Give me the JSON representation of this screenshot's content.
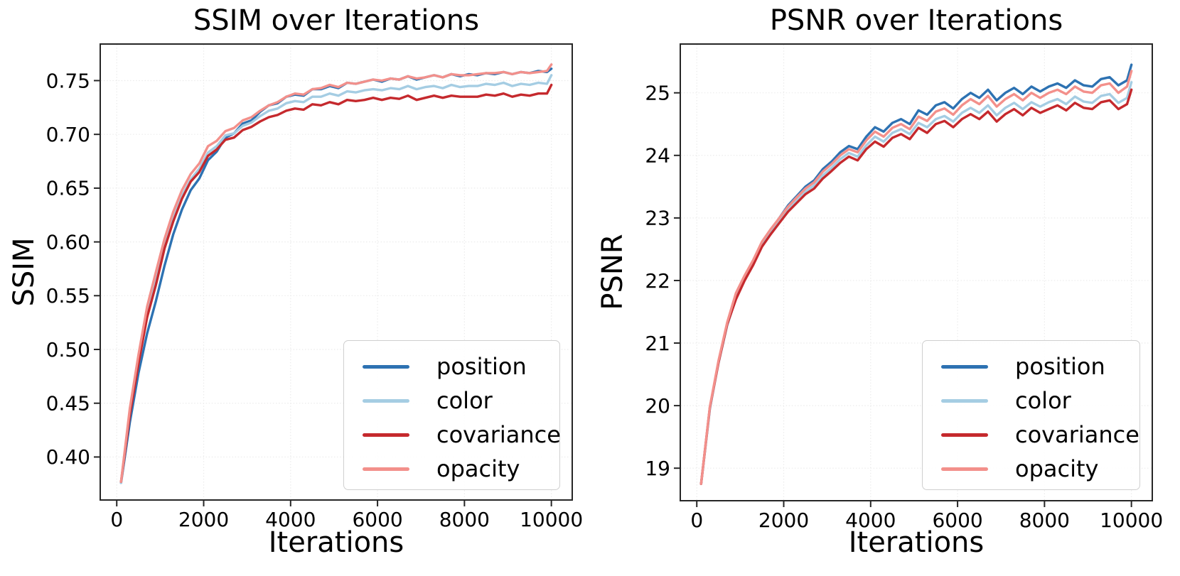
{
  "style": {
    "figure_background": "#ffffff",
    "text_color": "#000000",
    "grid_color": "#ebebeb",
    "spine_color": "#262626",
    "legend_border_color": "#cfcfcf"
  },
  "chart_data": [
    {
      "type": "line",
      "title": "SSIM over Iterations",
      "xlabel": "Iterations",
      "ylabel": "SSIM",
      "xlim": [
        -380,
        10480
      ],
      "ylim": [
        0.36,
        0.784
      ],
      "grid": true,
      "legend_position": "lower right",
      "xticks": {
        "values": [
          0,
          2000,
          4000,
          6000,
          8000,
          10000
        ],
        "labels": [
          "0",
          "2000",
          "4000",
          "6000",
          "8000",
          "10000"
        ]
      },
      "yticks": {
        "values": [
          0.4,
          0.45,
          0.5,
          0.55,
          0.6,
          0.65,
          0.7,
          0.75
        ],
        "labels": [
          "0.40",
          "0.45",
          "0.50",
          "0.55",
          "0.60",
          "0.65",
          "0.70",
          "0.75"
        ]
      },
      "x": [
        100,
        300,
        500,
        700,
        900,
        1100,
        1300,
        1500,
        1700,
        1900,
        2100,
        2300,
        2500,
        2700,
        2900,
        3100,
        3300,
        3500,
        3700,
        3900,
        4100,
        4300,
        4500,
        4700,
        4900,
        5100,
        5300,
        5500,
        5700,
        5900,
        6100,
        6300,
        6500,
        6700,
        6900,
        7100,
        7300,
        7500,
        7700,
        7900,
        8100,
        8300,
        8500,
        8700,
        8900,
        9100,
        9300,
        9500,
        9700,
        9900,
        10000
      ],
      "series": [
        {
          "name": "position",
          "color": "#2d72b2",
          "values": [
            0.376,
            0.432,
            0.478,
            0.515,
            0.545,
            0.578,
            0.607,
            0.63,
            0.648,
            0.659,
            0.676,
            0.684,
            0.697,
            0.701,
            0.71,
            0.713,
            0.721,
            0.727,
            0.729,
            0.735,
            0.737,
            0.736,
            0.742,
            0.742,
            0.745,
            0.743,
            0.748,
            0.747,
            0.749,
            0.751,
            0.749,
            0.752,
            0.751,
            0.754,
            0.751,
            0.753,
            0.755,
            0.753,
            0.756,
            0.754,
            0.756,
            0.755,
            0.757,
            0.756,
            0.758,
            0.756,
            0.758,
            0.757,
            0.759,
            0.758,
            0.761
          ]
        },
        {
          "name": "color",
          "color": "#a5cde3",
          "values": [
            0.376,
            0.441,
            0.49,
            0.533,
            0.565,
            0.597,
            0.622,
            0.643,
            0.658,
            0.668,
            0.683,
            0.689,
            0.699,
            0.701,
            0.708,
            0.711,
            0.717,
            0.722,
            0.724,
            0.729,
            0.731,
            0.73,
            0.735,
            0.735,
            0.738,
            0.736,
            0.74,
            0.739,
            0.741,
            0.742,
            0.741,
            0.743,
            0.742,
            0.745,
            0.742,
            0.744,
            0.745,
            0.743,
            0.746,
            0.744,
            0.745,
            0.745,
            0.747,
            0.746,
            0.748,
            0.745,
            0.747,
            0.746,
            0.748,
            0.747,
            0.755
          ]
        },
        {
          "name": "covariance",
          "color": "#c5292d",
          "values": [
            0.377,
            0.439,
            0.487,
            0.53,
            0.56,
            0.594,
            0.619,
            0.64,
            0.656,
            0.665,
            0.68,
            0.686,
            0.695,
            0.697,
            0.704,
            0.707,
            0.712,
            0.716,
            0.718,
            0.722,
            0.724,
            0.723,
            0.728,
            0.727,
            0.73,
            0.728,
            0.732,
            0.731,
            0.732,
            0.734,
            0.732,
            0.734,
            0.733,
            0.736,
            0.732,
            0.734,
            0.736,
            0.734,
            0.736,
            0.735,
            0.735,
            0.735,
            0.737,
            0.736,
            0.738,
            0.735,
            0.737,
            0.736,
            0.738,
            0.738,
            0.746
          ]
        },
        {
          "name": "opacity",
          "color": "#f3908b",
          "values": [
            0.377,
            0.445,
            0.495,
            0.54,
            0.572,
            0.603,
            0.628,
            0.648,
            0.663,
            0.673,
            0.689,
            0.694,
            0.703,
            0.706,
            0.713,
            0.716,
            0.722,
            0.727,
            0.73,
            0.735,
            0.738,
            0.737,
            0.742,
            0.743,
            0.746,
            0.744,
            0.748,
            0.747,
            0.749,
            0.751,
            0.75,
            0.752,
            0.751,
            0.754,
            0.752,
            0.753,
            0.755,
            0.753,
            0.756,
            0.755,
            0.755,
            0.756,
            0.757,
            0.757,
            0.758,
            0.756,
            0.758,
            0.757,
            0.758,
            0.759,
            0.765
          ]
        }
      ]
    },
    {
      "type": "line",
      "title": "PSNR over Iterations",
      "xlabel": "Iterations",
      "ylabel": "PSNR",
      "xlim": [
        -380,
        10480
      ],
      "ylim": [
        18.48,
        25.78
      ],
      "grid": true,
      "legend_position": "lower right",
      "xticks": {
        "values": [
          0,
          2000,
          4000,
          6000,
          8000,
          10000
        ],
        "labels": [
          "0",
          "2000",
          "4000",
          "6000",
          "8000",
          "10000"
        ]
      },
      "yticks": {
        "values": [
          19,
          20,
          21,
          22,
          23,
          24,
          25
        ],
        "labels": [
          "19",
          "20",
          "21",
          "22",
          "23",
          "24",
          "25"
        ]
      },
      "x": [
        100,
        300,
        500,
        700,
        900,
        1100,
        1300,
        1500,
        1700,
        1900,
        2100,
        2300,
        2500,
        2700,
        2900,
        3100,
        3300,
        3500,
        3700,
        3900,
        4100,
        4300,
        4500,
        4700,
        4900,
        5100,
        5300,
        5500,
        5700,
        5900,
        6100,
        6300,
        6500,
        6700,
        6900,
        7100,
        7300,
        7500,
        7700,
        7900,
        8100,
        8300,
        8500,
        8700,
        8900,
        9100,
        9300,
        9500,
        9700,
        9900,
        10000
      ],
      "series": [
        {
          "name": "position",
          "color": "#2d72b2",
          "values": [
            18.75,
            19.95,
            20.7,
            21.3,
            21.75,
            22.05,
            22.3,
            22.6,
            22.8,
            23.0,
            23.2,
            23.35,
            23.5,
            23.6,
            23.78,
            23.9,
            24.05,
            24.15,
            24.1,
            24.3,
            24.45,
            24.38,
            24.52,
            24.58,
            24.5,
            24.72,
            24.65,
            24.8,
            24.85,
            24.75,
            24.9,
            25.0,
            24.92,
            25.05,
            24.88,
            25.0,
            25.08,
            24.98,
            25.1,
            25.02,
            25.1,
            25.15,
            25.08,
            25.2,
            25.12,
            25.1,
            25.22,
            25.25,
            25.12,
            25.2,
            25.45
          ]
        },
        {
          "name": "color",
          "color": "#a5cde3",
          "values": [
            18.75,
            19.96,
            20.68,
            21.28,
            21.72,
            22.02,
            22.28,
            22.57,
            22.77,
            22.96,
            23.14,
            23.28,
            23.42,
            23.52,
            23.68,
            23.8,
            23.94,
            24.04,
            23.98,
            24.16,
            24.3,
            24.22,
            24.36,
            24.42,
            24.34,
            24.52,
            24.45,
            24.58,
            24.63,
            24.54,
            24.68,
            24.76,
            24.68,
            24.8,
            24.64,
            24.76,
            24.84,
            24.74,
            24.85,
            24.78,
            24.85,
            24.9,
            24.82,
            24.94,
            24.86,
            24.84,
            24.95,
            24.98,
            24.84,
            24.92,
            25.17
          ]
        },
        {
          "name": "covariance",
          "color": "#c5292d",
          "values": [
            18.75,
            19.97,
            20.69,
            21.3,
            21.7,
            22.0,
            22.25,
            22.54,
            22.74,
            22.92,
            23.1,
            23.24,
            23.38,
            23.47,
            23.63,
            23.75,
            23.88,
            23.98,
            23.92,
            24.1,
            24.22,
            24.14,
            24.28,
            24.34,
            24.26,
            24.44,
            24.36,
            24.5,
            24.55,
            24.45,
            24.58,
            24.66,
            24.58,
            24.7,
            24.54,
            24.66,
            24.74,
            24.64,
            24.76,
            24.68,
            24.74,
            24.8,
            24.72,
            24.84,
            24.76,
            24.74,
            24.85,
            24.88,
            24.74,
            24.82,
            25.05
          ]
        },
        {
          "name": "opacity",
          "color": "#f3908b",
          "values": [
            18.75,
            19.98,
            20.72,
            21.33,
            21.8,
            22.08,
            22.33,
            22.62,
            22.82,
            23.0,
            23.18,
            23.33,
            23.47,
            23.57,
            23.74,
            23.86,
            24.0,
            24.1,
            24.05,
            24.24,
            24.38,
            24.3,
            24.44,
            24.5,
            24.42,
            24.62,
            24.55,
            24.7,
            24.75,
            24.65,
            24.8,
            24.9,
            24.82,
            24.95,
            24.78,
            24.9,
            24.98,
            24.88,
            25.0,
            24.92,
            25.0,
            25.05,
            24.98,
            25.1,
            25.02,
            25.0,
            25.12,
            25.15,
            25.0,
            25.1,
            25.35
          ]
        }
      ]
    }
  ]
}
